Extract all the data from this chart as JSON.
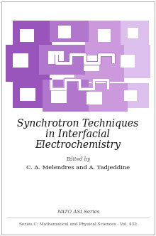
{
  "title_line1": "Synchrotron Techniques",
  "title_line2": "in Interfacial",
  "title_line3": "Electrochemistry",
  "edited_by": "Edited by",
  "editors": "C. A. Melendres and A. Tadjeddine",
  "series_label": "NATO ASI Series",
  "bottom_label": "Series C: Mathematical and Physical Sciences · Vol. 432",
  "background_color": "#ffffff",
  "title_color": "#111111",
  "text_color": "#333333",
  "small_text_color": "#555555",
  "border_color": "#aaaaaa",
  "col_dark": "#9955bb",
  "col_mid": "#b077cc",
  "col_light": "#cc99dd",
  "col_vlight": "#ddbfee",
  "col_vvlight": "#eeddff"
}
